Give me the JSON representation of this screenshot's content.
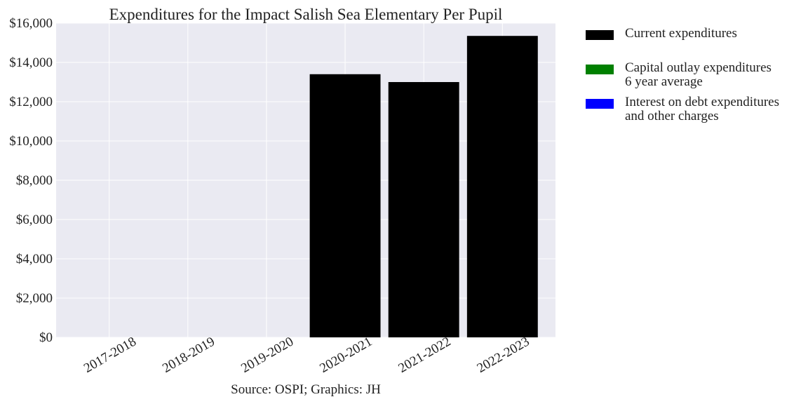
{
  "chart_data": {
    "type": "bar",
    "title": "Expenditures for the Impact Salish Sea Elementary Per Pupil",
    "xlabel": "Source: OSPI; Graphics: JH",
    "ylabel": "",
    "categories": [
      "2017-2018",
      "2018-2019",
      "2019-2020",
      "2020-2021",
      "2021-2022",
      "2022-2023"
    ],
    "series": [
      {
        "name": "Current expenditures",
        "color": "#000000",
        "values": [
          0,
          0,
          0,
          13400,
          13000,
          15350
        ]
      },
      {
        "name": "Capital outlay expenditures 6 year average",
        "color": "#008000",
        "values": [
          0,
          0,
          0,
          0,
          0,
          0
        ]
      },
      {
        "name": "Interest on debt expenditures and other charges",
        "color": "#0000ff",
        "values": [
          0,
          0,
          0,
          0,
          0,
          0
        ]
      }
    ],
    "ylim": [
      0,
      16000
    ],
    "yticks": [
      0,
      2000,
      4000,
      6000,
      8000,
      10000,
      12000,
      14000,
      16000
    ],
    "ytick_labels": [
      "$0",
      "$2,000",
      "$4,000",
      "$6,000",
      "$8,000",
      "$10,000",
      "$12,000",
      "$14,000",
      "$16,000"
    ],
    "grid": true,
    "legend_position": "outside-top-right"
  },
  "legend": [
    {
      "lines": [
        "Current expenditures"
      ],
      "color": "#000000",
      "name": "legend-current-expenditures"
    },
    {
      "lines": [
        "Capital outlay expenditures",
        "6 year average"
      ],
      "color": "#008000",
      "name": "legend-capital-outlay"
    },
    {
      "lines": [
        "Interest on debt expenditures",
        "and other charges"
      ],
      "color": "#0000ff",
      "name": "legend-interest-on-debt"
    }
  ]
}
